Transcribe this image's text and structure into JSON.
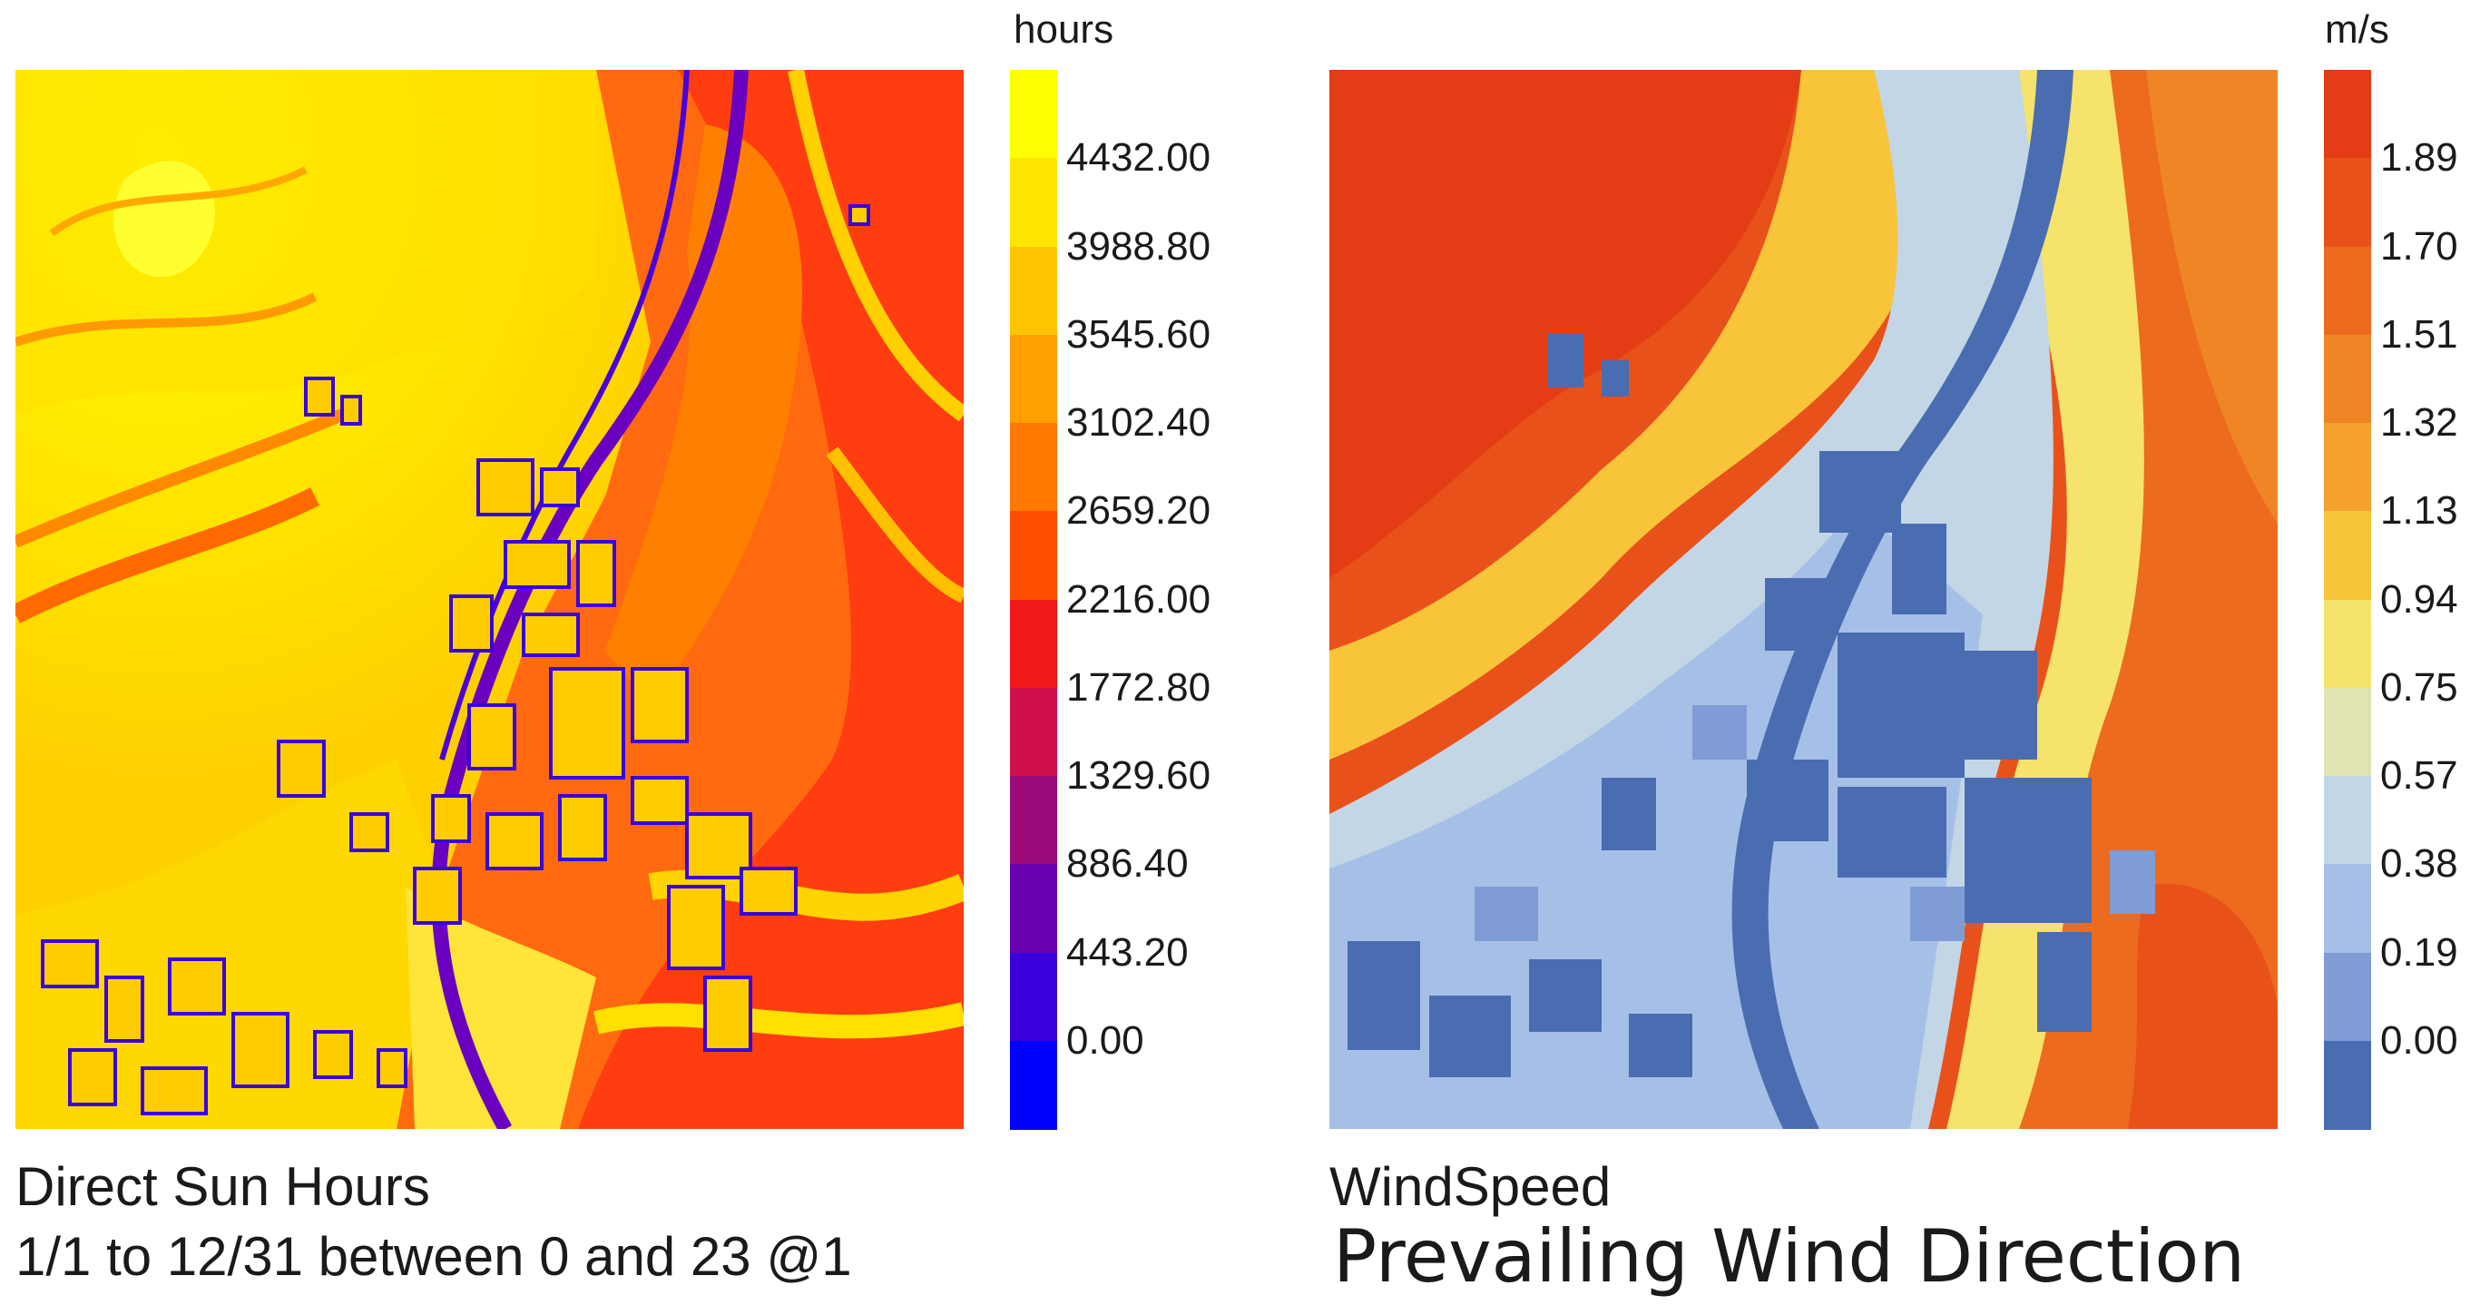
{
  "panels": {
    "left": {
      "title": "Direct Sun Hours",
      "subtitle": "1/1 to 12/31 between 0 and 23 @1",
      "legend_unit": "hours",
      "legend_ticks": [
        "4432.00",
        "3988.80",
        "3545.60",
        "3102.40",
        "2659.20",
        "2216.00",
        "1772.80",
        "1329.60",
        "886.40",
        "443.20",
        "0.00"
      ],
      "legend_colors": [
        "#ffff00",
        "#ffe600",
        "#ffc400",
        "#ffa000",
        "#ff7a00",
        "#ff4d00",
        "#f01818",
        "#d0104a",
        "#9a0a78",
        "#6a00b0",
        "#3a00dd",
        "#0000ff"
      ]
    },
    "right": {
      "title": "WindSpeed",
      "subtitle": "Prevailing Wind Direction",
      "legend_unit": "m/s",
      "legend_ticks": [
        "1.89",
        "1.70",
        "1.51",
        "1.32",
        "1.13",
        "0.94",
        "0.75",
        "0.57",
        "0.38",
        "0.19",
        "0.00"
      ],
      "legend_colors": [
        "#e43c14",
        "#e85219",
        "#ec6b1e",
        "#f08526",
        "#f4a12e",
        "#f8c43a",
        "#f5e36b",
        "#dfe4b0",
        "#c2d6e6",
        "#a6bfe7",
        "#7f9cd5",
        "#4a6cb1"
      ]
    }
  }
}
